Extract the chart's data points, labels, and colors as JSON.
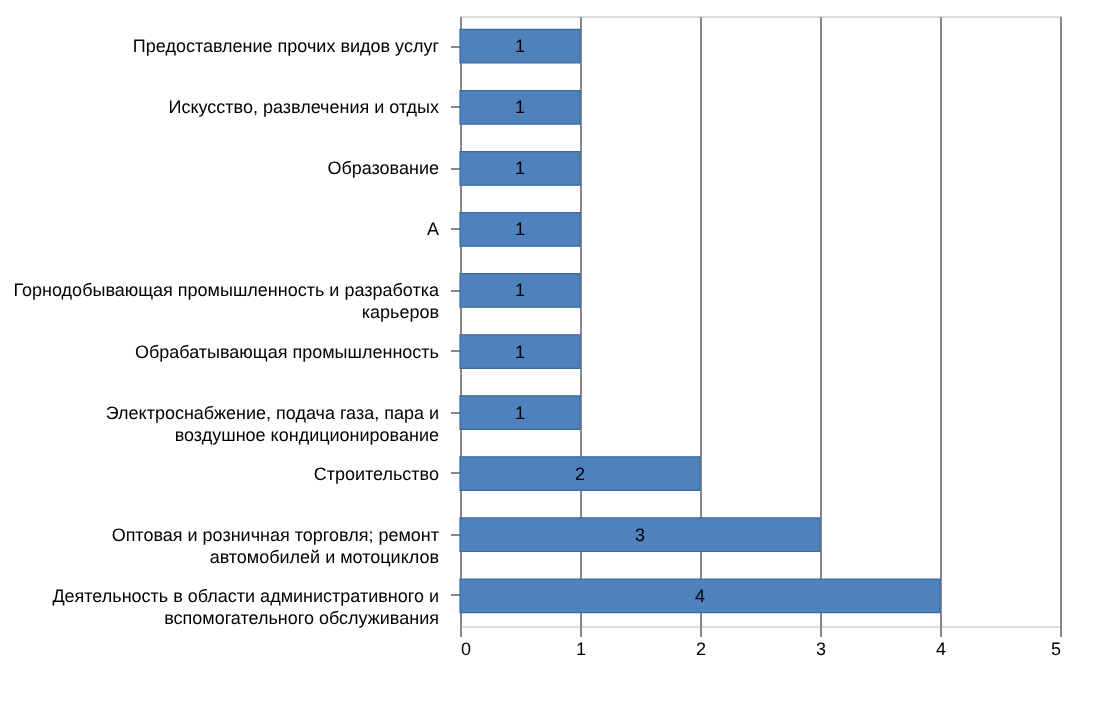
{
  "chart_data": {
    "type": "bar",
    "orientation": "horizontal",
    "categories": [
      "Предоставление прочих видов услуг",
      "Искусство, развлечения и отдых",
      "Образование",
      "А",
      "Горнодобывающая промышленность и разработка карьеров",
      "Обрабатывающая промышленность",
      "Электроснабжение, подача газа, пара и воздушное кондиционирование",
      "Строительство",
      "Оптовая и розничная торговля; ремонт автомобилей и мотоциклов",
      "Деятельность в области административного и вспомогательного обслуживания"
    ],
    "values": [
      1,
      1,
      1,
      1,
      1,
      1,
      1,
      2,
      3,
      4
    ],
    "color": "#4f81bd",
    "xlim": [
      0,
      5
    ],
    "xticks": [
      0,
      1,
      2,
      3,
      4,
      5
    ],
    "grid": "x",
    "data_labels": true
  }
}
